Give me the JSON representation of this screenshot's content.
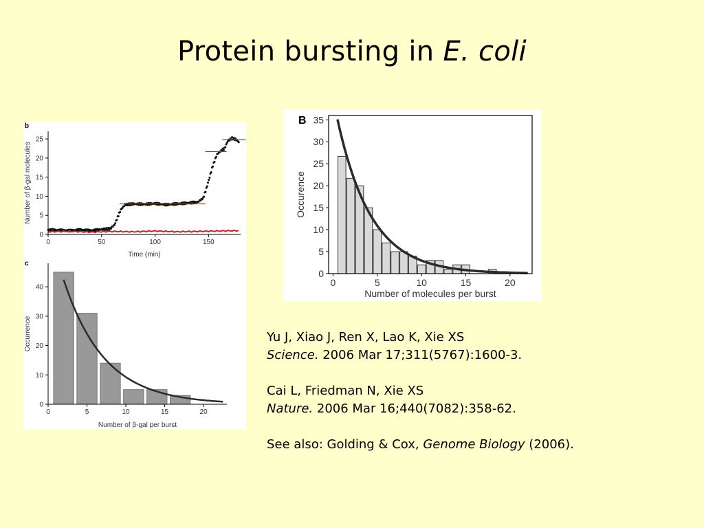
{
  "slide": {
    "title_main": "Protein bursting in ",
    "title_italic": "E. coli"
  },
  "references": {
    "ref1_authors": " Yu J, Xiao J, Ren X, Lao K, Xie XS",
    "ref1_journal": "Science.",
    "ref1_details": "  2006 Mar 17;311(5767):1600-3.",
    "ref2_authors": " Cai L, Friedman N, Xie XS",
    "ref2_journal": "Nature.",
    "ref2_details": " 2006 Mar 16;440(7082):358-62.",
    "see_also_prefix": "See also: Golding & Cox, ",
    "see_also_journal": "Genome Biology",
    "see_also_year": " (2006)."
  },
  "colors": {
    "background": "#ffffcc",
    "bar_gray": "#999999",
    "bar_light": "#d9d9d9",
    "trace_black": "#111111",
    "trace_red": "#cc2222",
    "fit_curve": "#2b2b2b"
  },
  "chart_data": [
    {
      "id": "b",
      "type": "line",
      "panel_label": "b",
      "xlabel": "Time (min)",
      "ylabel": "Number of β-gal molecules",
      "xlim": [
        0,
        180
      ],
      "ylim": [
        0,
        27
      ],
      "xticks": [
        0,
        50,
        100,
        150
      ],
      "yticks": [
        0,
        5,
        10,
        15,
        20,
        25
      ],
      "series": [
        {
          "kind": "cell-trace",
          "color": "#111111",
          "points": [
            [
              0,
              1.2
            ],
            [
              10,
              1.1
            ],
            [
              20,
              1.0
            ],
            [
              30,
              1.2
            ],
            [
              40,
              1.0
            ],
            [
              50,
              1.3
            ],
            [
              58,
              1.5
            ],
            [
              62,
              2.5
            ],
            [
              65,
              4.5
            ],
            [
              68,
              6.5
            ],
            [
              72,
              7.8
            ],
            [
              80,
              8.0
            ],
            [
              90,
              7.9
            ],
            [
              100,
              8.1
            ],
            [
              110,
              7.8
            ],
            [
              120,
              8.0
            ],
            [
              130,
              8.2
            ],
            [
              140,
              8.5
            ],
            [
              145,
              9.5
            ],
            [
              148,
              12
            ],
            [
              151,
              15
            ],
            [
              154,
              18
            ],
            [
              158,
              21
            ],
            [
              162,
              22
            ],
            [
              165,
              22.5
            ],
            [
              168,
              24.5
            ],
            [
              172,
              25.2
            ],
            [
              176,
              24.8
            ],
            [
              179,
              24.0
            ]
          ]
        },
        {
          "kind": "background-trace",
          "color": "#cc2222",
          "points": [
            [
              0,
              0.7
            ],
            [
              20,
              0.8
            ],
            [
              40,
              0.6
            ],
            [
              60,
              0.8
            ],
            [
              80,
              0.7
            ],
            [
              100,
              0.9
            ],
            [
              120,
              0.7
            ],
            [
              140,
              0.8
            ],
            [
              160,
              0.9
            ],
            [
              180,
              1.0
            ]
          ]
        }
      ],
      "levels": [
        {
          "x": [
            67,
            147
          ],
          "y": 8
        },
        {
          "x": [
            147,
            167
          ],
          "y": 21.7
        },
        {
          "x": [
            163,
            186
          ],
          "y": 24.8
        }
      ]
    },
    {
      "id": "c",
      "type": "bar",
      "panel_label": "c",
      "xlabel": "Number of β-gal per burst",
      "ylabel": "Occurrence",
      "xlim": [
        0,
        23
      ],
      "ylim": [
        0,
        48
      ],
      "xticks": [
        0,
        5,
        10,
        15,
        20
      ],
      "yticks": [
        0,
        10,
        20,
        30,
        40
      ],
      "bin_centers": [
        2,
        5,
        8,
        11,
        14,
        17
      ],
      "bin_width": 2.6,
      "values": [
        45,
        31,
        14,
        5,
        5,
        3
      ],
      "fit": {
        "amplitude": 62,
        "rate": 0.19,
        "x_range": [
          2,
          22.5
        ]
      }
    },
    {
      "id": "B",
      "type": "bar",
      "panel_label": "B",
      "xlabel": "Number of molecules per burst",
      "ylabel": "Occurence",
      "xlim": [
        -0.5,
        22.5
      ],
      "ylim": [
        0,
        36
      ],
      "xticks": [
        0,
        5,
        10,
        15,
        20
      ],
      "yticks": [
        0,
        5,
        10,
        15,
        20,
        25,
        30,
        35
      ],
      "bin_centers": [
        1,
        2,
        3,
        4,
        5,
        6,
        7,
        8,
        9,
        10,
        11,
        12,
        13,
        14,
        15,
        16,
        17,
        18,
        19,
        20,
        21
      ],
      "bin_width": 0.9,
      "values": [
        26.7,
        21.7,
        20,
        15,
        10,
        7,
        5,
        5,
        4,
        2,
        3,
        3,
        1,
        2,
        2,
        0,
        0,
        1,
        0,
        0,
        0
      ],
      "fit": {
        "amplitude": 40,
        "rate": 0.26,
        "x_range": [
          0.5,
          22
        ]
      }
    }
  ]
}
